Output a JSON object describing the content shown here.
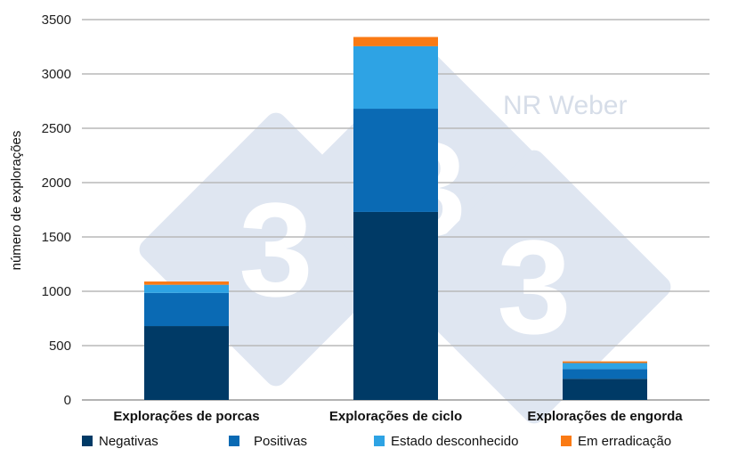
{
  "chart_data": {
    "type": "bar",
    "stacked": true,
    "categories": [
      "Explorações de porcas",
      "Explorações de ciclo",
      "Explorações de engorda"
    ],
    "series": [
      {
        "name": "Negativas",
        "color": "#003a66",
        "values": [
          680,
          1730,
          195
        ]
      },
      {
        "name": "Positivas",
        "color": "#0a6ab4",
        "values": [
          305,
          950,
          90
        ]
      },
      {
        "name": "Estado desconhecido",
        "color": "#2ea3e4",
        "values": [
          75,
          575,
          55
        ]
      },
      {
        "name": "Em erradicação",
        "color": "#fa7a14",
        "values": [
          30,
          85,
          15
        ]
      }
    ],
    "ylabel": "número de explorações",
    "ylim": [
      0,
      3500
    ],
    "yticks": [
      0,
      500,
      1000,
      1500,
      2000,
      2500,
      3000,
      3500
    ],
    "grid": true,
    "legend_position": "bottom"
  },
  "watermark": {
    "text": "NR Weber",
    "logo_digit": "3"
  }
}
